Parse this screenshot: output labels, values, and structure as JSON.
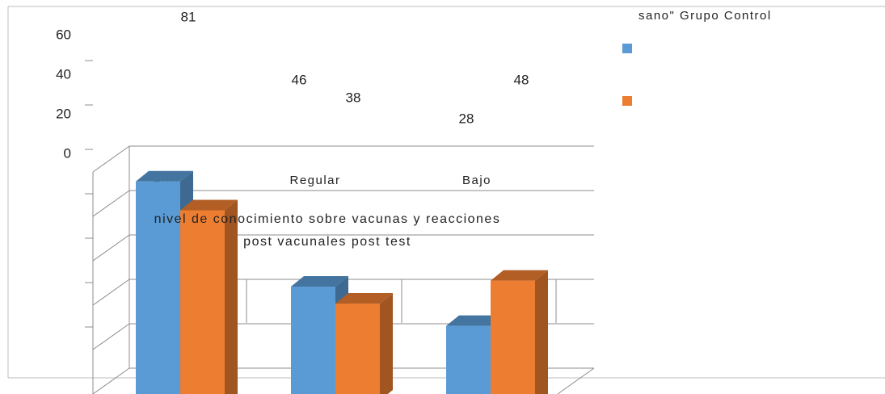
{
  "chart_data": {
    "type": "bar3d",
    "categories": [
      "Alto",
      "Regular",
      "Bajo"
    ],
    "series": [
      {
        "color": "#5b9bd5",
        "values": [
          81,
          46,
          28
        ],
        "value_labels": [
          81,
          46,
          28
        ]
      },
      {
        "color": "#ed7d31",
        "values": [
          70,
          38,
          48
        ],
        "value_labels": [
          null,
          38,
          48
        ]
      }
    ],
    "yticks": [
      0,
      20,
      40,
      60
    ],
    "legend_text": "sano\" Grupo Control",
    "x_axis_title": "nivel de conocimiento sobre vacunas y reacciones post vacunales post test"
  }
}
